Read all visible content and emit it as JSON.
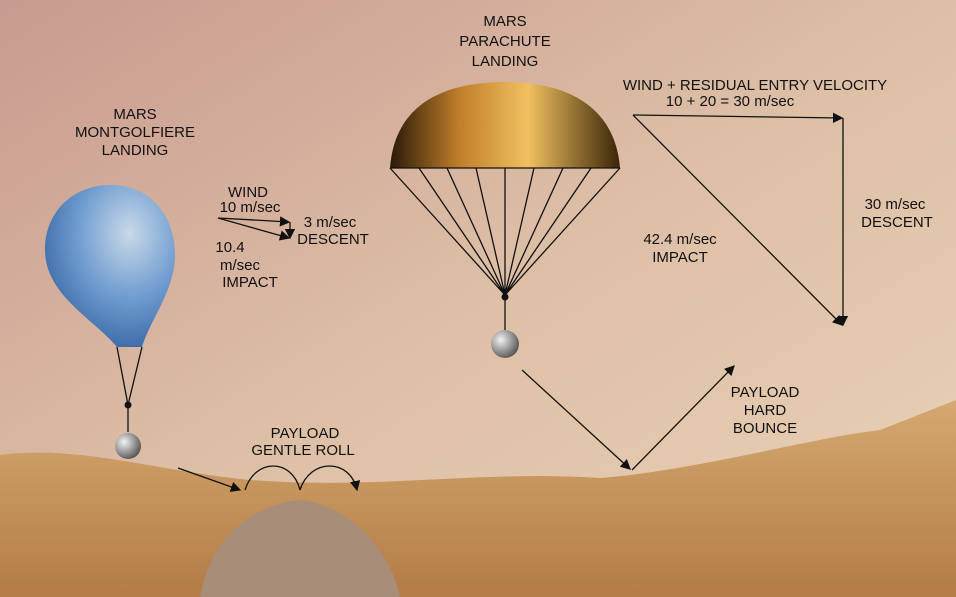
{
  "montgolfiere": {
    "title": [
      "MARS",
      "MONTGOLFIERE",
      "LANDING"
    ],
    "wind": [
      "WIND",
      "10 m/sec"
    ],
    "descent": [
      "3 m/sec",
      "DESCENT"
    ],
    "impact": [
      "10.4",
      "m/sec",
      "IMPACT"
    ],
    "payload": [
      "PAYLOAD",
      "GENTLE ROLL"
    ]
  },
  "parachute": {
    "title": [
      "MARS",
      "PARACHUTE",
      "LANDING"
    ],
    "wind": [
      "WIND + RESIDUAL ENTRY VELOCITY",
      "10 + 20 = 30 m/sec"
    ],
    "descent": [
      "30 m/sec",
      "DESCENT"
    ],
    "impact": [
      "42.4 m/sec",
      "IMPACT"
    ],
    "payload": [
      "PAYLOAD",
      "HARD",
      "BOUNCE"
    ]
  }
}
